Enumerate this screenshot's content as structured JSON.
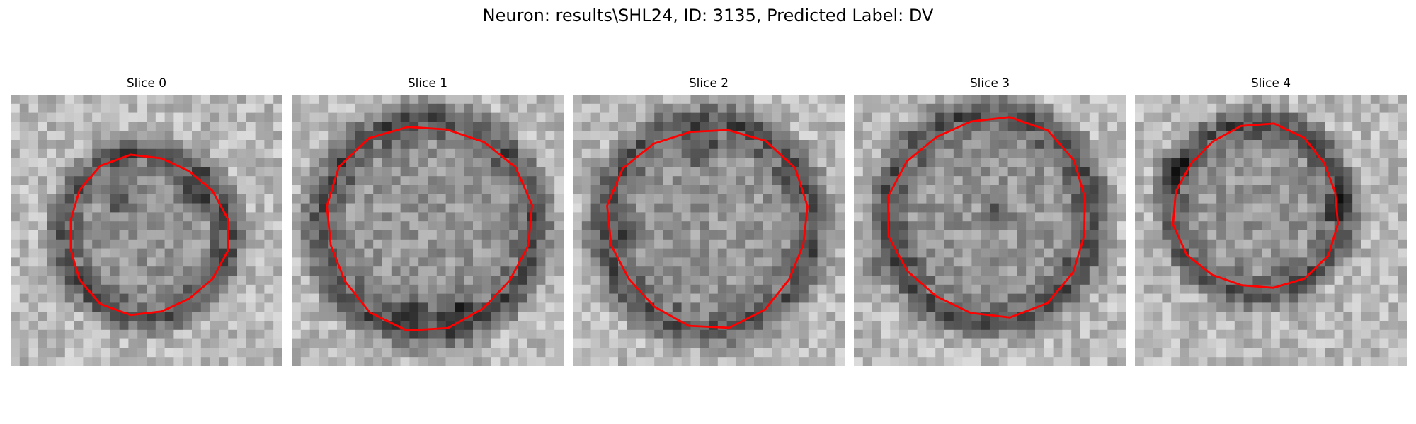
{
  "figure": {
    "title": "Neuron: results\\SHL24, ID: 3135, Predicted Label: DV",
    "contour_color": "#ff0000"
  },
  "slices": [
    {
      "title": "Slice 0"
    },
    {
      "title": "Slice 1"
    },
    {
      "title": "Slice 2"
    },
    {
      "title": "Slice 3"
    },
    {
      "title": "Slice 4"
    }
  ]
}
